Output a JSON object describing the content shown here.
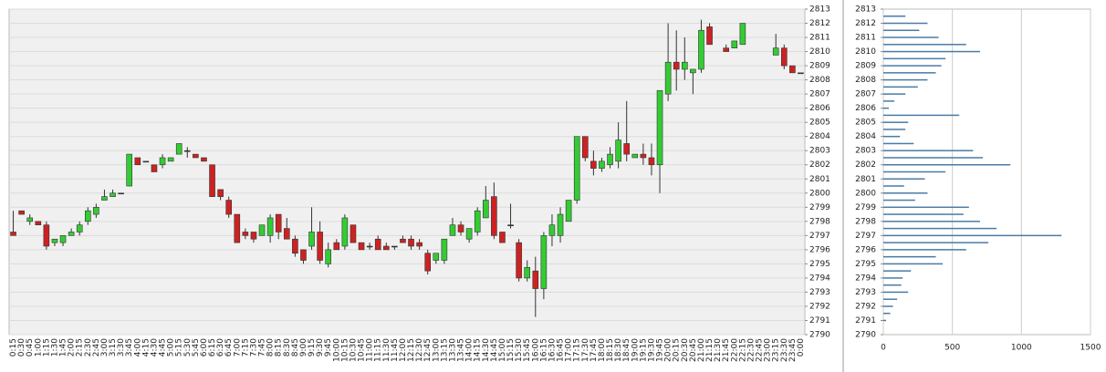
{
  "chart_data": [
    {
      "type": "candlestick",
      "categories": [
        "0:15",
        "0:30",
        "0:45",
        "1:00",
        "1:15",
        "1:30",
        "1:45",
        "2:00",
        "2:15",
        "2:30",
        "2:45",
        "3:00",
        "3:15",
        "3:30",
        "3:45",
        "4:00",
        "4:15",
        "4:30",
        "4:45",
        "5:00",
        "5:15",
        "5:30",
        "5:45",
        "6:00",
        "6:15",
        "6:30",
        "6:45",
        "7:00",
        "7:15",
        "7:30",
        "7:45",
        "8:00",
        "8:15",
        "8:30",
        "8:45",
        "9:00",
        "9:15",
        "9:30",
        "9:45",
        "10:00",
        "10:15",
        "10:30",
        "10:45",
        "11:00",
        "11:15",
        "11:30",
        "11:45",
        "12:00",
        "12:15",
        "12:30",
        "12:45",
        "13:00",
        "13:15",
        "13:30",
        "13:45",
        "14:00",
        "14:15",
        "14:30",
        "14:45",
        "15:00",
        "15:15",
        "15:30",
        "15:45",
        "16:00",
        "16:15",
        "16:30",
        "16:45",
        "17:00",
        "17:15",
        "17:30",
        "17:45",
        "18:00",
        "18:15",
        "18:30",
        "18:45",
        "19:00",
        "19:15",
        "19:30",
        "19:45",
        "20:00",
        "20:15",
        "20:30",
        "20:45",
        "21:00",
        "21:15",
        "21:30",
        "21:45",
        "22:00",
        "22:15",
        "22:30",
        "22:45",
        "23:00",
        "23:15",
        "23:30",
        "23:45",
        "0:00"
      ],
      "open": [
        2797.25,
        2798.75,
        2798.0,
        2798.0,
        2797.75,
        2796.5,
        2796.5,
        2797.0,
        2797.25,
        2798.0,
        2798.5,
        2799.5,
        2799.75,
        2800.0,
        2800.5,
        2802.5,
        2802.25,
        2802.0,
        2802.0,
        2802.25,
        2802.75,
        2803.0,
        2802.75,
        2802.5,
        2802.0,
        2800.25,
        2799.5,
        2798.5,
        2797.25,
        2797.25,
        2797.0,
        2797.0,
        2798.5,
        2797.5,
        2796.75,
        2796.0,
        2796.25,
        2797.25,
        2795.0,
        2796.5,
        2796.25,
        2797.75,
        2796.5,
        2796.25,
        2796.75,
        2796.25,
        2796.25,
        2796.75,
        2796.75,
        2796.5,
        2795.75,
        2795.25,
        2795.25,
        2797.0,
        2797.75,
        2796.75,
        2797.25,
        2798.25,
        2799.75,
        2797.25,
        2797.75,
        2796.5,
        2794.0,
        2794.5,
        2793.25,
        2797.0,
        2797.0,
        2798.0,
        2799.5,
        2804.0,
        2802.25,
        2801.75,
        2802.0,
        2802.25,
        2803.5,
        2802.5,
        2802.75,
        2802.5,
        2802.0,
        2807.0,
        2809.25,
        2808.75,
        2808.5,
        2808.75,
        2811.75,
        null,
        2810.25,
        2810.25,
        2810.5,
        null,
        null,
        null,
        2809.75,
        2810.25,
        2809.0,
        2808.5
      ],
      "high": [
        2798.75,
        2798.75,
        2798.5,
        2798.0,
        2798.0,
        2796.75,
        2797.0,
        2797.5,
        2798.0,
        2799.0,
        2799.25,
        2800.25,
        2800.25,
        2800.0,
        2802.75,
        2802.5,
        2802.25,
        2802.0,
        2802.75,
        2802.5,
        2803.5,
        2803.25,
        2802.75,
        2802.5,
        2802.0,
        2800.25,
        2799.75,
        2798.5,
        2797.5,
        2797.25,
        2797.75,
        2798.5,
        2798.5,
        2798.25,
        2797.0,
        2796.0,
        2799.0,
        2798.0,
        2796.5,
        2796.75,
        2798.5,
        2797.75,
        2796.5,
        2796.5,
        2797.0,
        2796.5,
        2796.25,
        2797.0,
        2797.0,
        2796.75,
        2796.0,
        2795.75,
        2796.75,
        2798.25,
        2798.0,
        2797.5,
        2799.0,
        2800.5,
        2800.75,
        2797.25,
        2799.25,
        2796.75,
        2795.25,
        2795.5,
        2797.25,
        2798.5,
        2799.0,
        2799.5,
        2804.0,
        2804.0,
        2803.0,
        2802.5,
        2803.25,
        2805.0,
        2806.5,
        2802.75,
        2803.5,
        2803.5,
        2807.25,
        2812.0,
        2811.5,
        2811.0,
        2808.75,
        2812.25,
        2812.0,
        null,
        2810.5,
        2810.75,
        2812.0,
        null,
        null,
        null,
        2811.25,
        2810.5,
        2809.0,
        2808.5
      ],
      "low": [
        2797.0,
        2798.5,
        2797.75,
        2797.75,
        2796.0,
        2796.25,
        2796.25,
        2797.0,
        2797.0,
        2797.75,
        2798.25,
        2799.5,
        2799.75,
        2800.0,
        2800.5,
        2802.0,
        2802.25,
        2801.5,
        2801.75,
        2802.25,
        2802.75,
        2802.5,
        2802.5,
        2802.25,
        2799.75,
        2799.5,
        2798.25,
        2796.5,
        2796.75,
        2796.5,
        2797.0,
        2796.5,
        2796.75,
        2796.75,
        2795.5,
        2795.0,
        2796.0,
        2795.0,
        2794.75,
        2796.0,
        2796.0,
        2796.5,
        2796.0,
        2796.0,
        2796.0,
        2796.0,
        2796.0,
        2796.5,
        2796.0,
        2796.0,
        2794.25,
        2795.0,
        2795.0,
        2797.0,
        2797.0,
        2796.5,
        2797.0,
        2798.25,
        2796.75,
        2796.5,
        2797.5,
        2793.75,
        2793.75,
        2791.25,
        2792.5,
        2796.25,
        2796.5,
        2798.0,
        2799.25,
        2802.25,
        2801.25,
        2801.5,
        2801.75,
        2801.75,
        2802.25,
        2802.5,
        2802.0,
        2801.25,
        2800.0,
        2806.5,
        2807.25,
        2808.0,
        2807.0,
        2808.5,
        2810.5,
        null,
        2810.0,
        2810.25,
        2810.5,
        null,
        null,
        null,
        2809.75,
        2808.75,
        2808.5,
        2808.5
      ],
      "close": [
        2797.0,
        2798.5,
        2798.25,
        2797.75,
        2796.25,
        2796.75,
        2797.0,
        2797.25,
        2797.75,
        2798.75,
        2799.0,
        2799.75,
        2800.0,
        2800.0,
        2802.75,
        2802.0,
        2802.25,
        2801.5,
        2802.5,
        2802.5,
        2803.5,
        2803.0,
        2802.5,
        2802.25,
        2799.75,
        2799.75,
        2798.5,
        2796.5,
        2797.0,
        2796.75,
        2797.75,
        2798.25,
        2797.25,
        2796.75,
        2795.75,
        2795.25,
        2797.25,
        2795.25,
        2796.0,
        2796.0,
        2798.25,
        2796.5,
        2796.0,
        2796.25,
        2796.0,
        2796.0,
        2796.25,
        2796.5,
        2796.25,
        2796.25,
        2794.5,
        2795.75,
        2796.75,
        2797.75,
        2797.25,
        2797.5,
        2798.75,
        2799.5,
        2797.0,
        2796.5,
        2797.75,
        2794.0,
        2794.75,
        2793.25,
        2797.0,
        2797.75,
        2798.5,
        2799.5,
        2804.0,
        2802.5,
        2801.75,
        2802.25,
        2802.75,
        2803.75,
        2802.75,
        2802.75,
        2802.5,
        2802.0,
        2807.25,
        2809.25,
        2808.75,
        2809.25,
        2808.75,
        2811.5,
        2810.5,
        null,
        2810.0,
        2810.75,
        2812.0,
        null,
        null,
        null,
        2810.25,
        2809.0,
        2808.5,
        2808.5
      ],
      "up_color": "#33cc33",
      "down_color": "#cc2222",
      "ylim": [
        2790,
        2813
      ],
      "yticks": [
        2790,
        2791,
        2792,
        2793,
        2794,
        2795,
        2796,
        2797,
        2798,
        2799,
        2800,
        2801,
        2802,
        2803,
        2804,
        2805,
        2806,
        2807,
        2808,
        2809,
        2810,
        2811,
        2812,
        2813
      ],
      "grid": true
    },
    {
      "type": "bar",
      "orientation": "horizontal",
      "prices": [
        2812.5,
        2812,
        2811.5,
        2811,
        2810.5,
        2810,
        2809.5,
        2809,
        2808.5,
        2808,
        2807.5,
        2807,
        2806.5,
        2806,
        2805.5,
        2805,
        2804.5,
        2804,
        2803.5,
        2803,
        2802.5,
        2802,
        2801.5,
        2801,
        2800.5,
        2800,
        2799.5,
        2799,
        2798.5,
        2798,
        2797.5,
        2797,
        2796.5,
        2796,
        2795.5,
        2795,
        2794.5,
        2794,
        2793.5,
        2793,
        2792.5,
        2792,
        2791.5,
        2791
      ],
      "values": [
        160,
        320,
        260,
        400,
        600,
        700,
        450,
        420,
        380,
        320,
        250,
        160,
        80,
        40,
        550,
        180,
        160,
        120,
        220,
        650,
        720,
        920,
        450,
        300,
        150,
        320,
        230,
        620,
        580,
        700,
        820,
        1290,
        760,
        600,
        380,
        430,
        200,
        140,
        130,
        180,
        100,
        70,
        50,
        20
      ],
      "color": "#4a7ba6",
      "xlim": [
        0,
        1500
      ],
      "xticks": [
        0,
        500,
        1000,
        1500
      ],
      "ylim": [
        2790,
        2813
      ],
      "yticks": [
        2790,
        2791,
        2792,
        2793,
        2794,
        2795,
        2796,
        2797,
        2798,
        2799,
        2800,
        2801,
        2802,
        2803,
        2804,
        2805,
        2806,
        2807,
        2808,
        2809,
        2810,
        2811,
        2812,
        2813
      ],
      "grid": true
    }
  ]
}
